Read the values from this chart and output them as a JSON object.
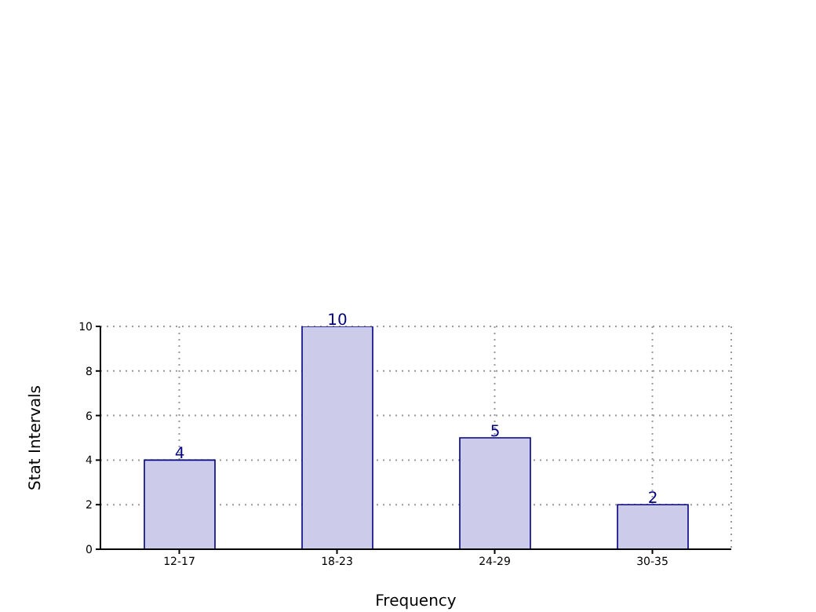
{
  "chart_data": {
    "type": "bar",
    "xlabel": "Frequency",
    "ylabel": "Stat Intervals",
    "categories": [
      "12-17",
      "18-23",
      "24-29",
      "30-35"
    ],
    "values": [
      4,
      10,
      5,
      2
    ],
    "color": "#ccccea",
    "ylim": [
      0,
      10
    ],
    "yticks": [
      0,
      2,
      4,
      6,
      8,
      10
    ],
    "grid": true,
    "data_labels": true
  }
}
